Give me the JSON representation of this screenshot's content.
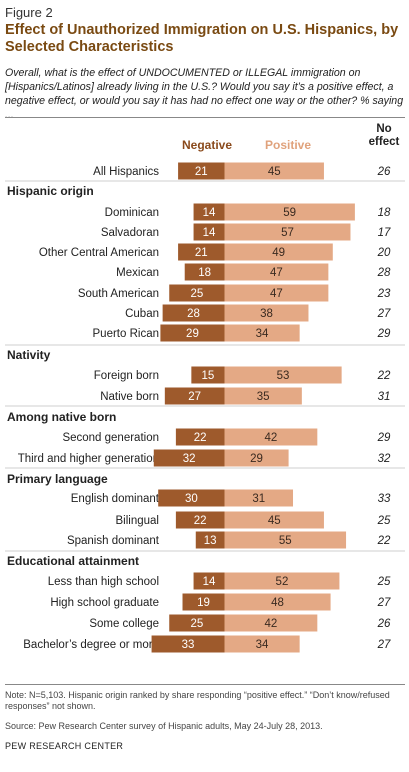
{
  "figure_label": "Figure 2",
  "header_negative": "Negative",
  "header_positive": "Positive",
  "header_no_effect": "No effect",
  "note": "Note: N=5,103.  Hispanic origin ranked by share responding “positive effect.” “Don’t know/refused responses” not shown.",
  "source": "Source: Pew Research Center survey of Hispanic adults, May 24-July 28, 2013.",
  "footer": "PEW RESEARCH CENTER",
  "colors": {
    "negative": "#9e5a2c",
    "positive": "#e4a985",
    "title": "#7a4a12"
  },
  "chart_data": {
    "type": "bar",
    "title": "Effect of Unauthorized Immigration on U.S. Hispanics, by Selected Characteristics",
    "subtitle": "Overall, what is the effect of UNDOCUMENTED or ILLEGAL immigration on [Hispanics/Latinos] already living in the U.S.? Would you say it’s a positive effect, a negative effect, or would you say it has had no effect one way or the other? % saying ...",
    "series_names": [
      "Negative",
      "Positive",
      "No effect"
    ],
    "rows": [
      {
        "kind": "item",
        "label": "All Hispanics",
        "negative": 21,
        "positive": 45,
        "no_effect": 26
      },
      {
        "kind": "group",
        "label": "Hispanic origin"
      },
      {
        "kind": "item",
        "label": "Dominican",
        "negative": 14,
        "positive": 59,
        "no_effect": 18
      },
      {
        "kind": "item",
        "label": "Salvadoran",
        "negative": 14,
        "positive": 57,
        "no_effect": 17
      },
      {
        "kind": "item",
        "label": "Other Central American",
        "negative": 21,
        "positive": 49,
        "no_effect": 20
      },
      {
        "kind": "item",
        "label": "Mexican",
        "negative": 18,
        "positive": 47,
        "no_effect": 28
      },
      {
        "kind": "item",
        "label": "South American",
        "negative": 25,
        "positive": 47,
        "no_effect": 23
      },
      {
        "kind": "item",
        "label": "Cuban",
        "negative": 28,
        "positive": 38,
        "no_effect": 27
      },
      {
        "kind": "item",
        "label": "Puerto Rican",
        "negative": 29,
        "positive": 34,
        "no_effect": 29
      },
      {
        "kind": "group",
        "label": "Nativity"
      },
      {
        "kind": "item",
        "label": "Foreign born",
        "negative": 15,
        "positive": 53,
        "no_effect": 22
      },
      {
        "kind": "item",
        "label": "Native born",
        "negative": 27,
        "positive": 35,
        "no_effect": 31
      },
      {
        "kind": "group",
        "label": "Among native born"
      },
      {
        "kind": "item",
        "label": "Second generation",
        "negative": 22,
        "positive": 42,
        "no_effect": 29
      },
      {
        "kind": "item",
        "label": "Third and higher generation",
        "negative": 32,
        "positive": 29,
        "no_effect": 32
      },
      {
        "kind": "group",
        "label": "Primary language"
      },
      {
        "kind": "item",
        "label": "English dominant",
        "negative": 30,
        "positive": 31,
        "no_effect": 33
      },
      {
        "kind": "item",
        "label": "Bilingual",
        "negative": 22,
        "positive": 45,
        "no_effect": 25
      },
      {
        "kind": "item",
        "label": "Spanish dominant",
        "negative": 13,
        "positive": 55,
        "no_effect": 22
      },
      {
        "kind": "group",
        "label": "Educational attainment"
      },
      {
        "kind": "item",
        "label": "Less than high school",
        "negative": 14,
        "positive": 52,
        "no_effect": 25
      },
      {
        "kind": "item",
        "label": "High school graduate",
        "negative": 19,
        "positive": 48,
        "no_effect": 27
      },
      {
        "kind": "item",
        "label": "Some college",
        "negative": 25,
        "positive": 42,
        "no_effect": 26
      },
      {
        "kind": "item",
        "label": "Bachelor’s degree or more",
        "negative": 33,
        "positive": 34,
        "no_effect": 27
      }
    ]
  }
}
